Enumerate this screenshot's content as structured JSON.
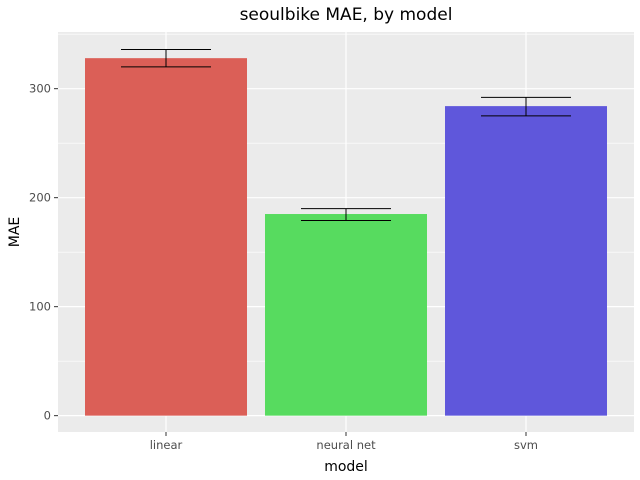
{
  "chart_data": {
    "type": "bar",
    "title": "seoulbike MAE, by model",
    "xlabel": "model",
    "ylabel": "MAE",
    "categories": [
      "linear",
      "neural net",
      "svm"
    ],
    "values": [
      328,
      185,
      284
    ],
    "error_bars": [
      {
        "low": 320,
        "high": 336
      },
      {
        "low": 179,
        "high": 190
      },
      {
        "low": 275,
        "high": 292
      }
    ],
    "bar_colors": [
      "#db5f57",
      "#57db5f",
      "#5f57db"
    ],
    "ylim": [
      -15,
      352
    ],
    "yticks": [
      0,
      100,
      200,
      300
    ],
    "ytick_labels": [
      "0",
      "100",
      "200",
      "300"
    ],
    "grid": true,
    "panel_background": "#ebebeb",
    "grid_color": "#ffffff"
  }
}
